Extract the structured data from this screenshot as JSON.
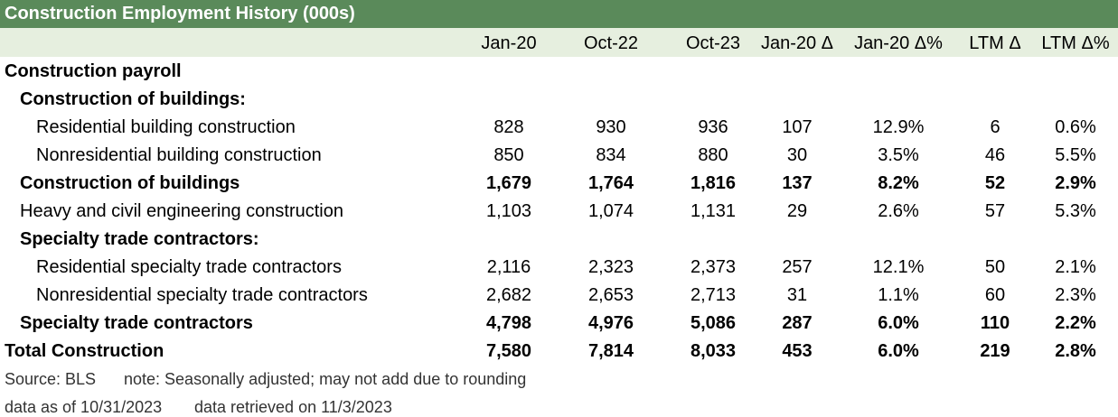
{
  "title": "Construction Employment History (000s)",
  "columns": [
    "Jan-20",
    "Oct-22",
    "Oct-23",
    "Jan-20 Δ",
    "Jan-20 Δ%",
    "LTM Δ",
    "LTM Δ%"
  ],
  "rows": [
    {
      "label": "Construction payroll",
      "level": 0,
      "bold": true,
      "values": []
    },
    {
      "label": "Construction of buildings:",
      "level": 1,
      "bold": true,
      "values": []
    },
    {
      "label": "Residential building construction",
      "level": 2,
      "bold": false,
      "values": [
        "828",
        "930",
        "936",
        "107",
        "12.9%",
        "6",
        "0.6%"
      ]
    },
    {
      "label": "Nonresidential building construction",
      "level": 2,
      "bold": false,
      "values": [
        "850",
        "834",
        "880",
        "30",
        "3.5%",
        "46",
        "5.5%"
      ]
    },
    {
      "label": "Construction of buildings",
      "level": 1,
      "bold": true,
      "values": [
        "1,679",
        "1,764",
        "1,816",
        "137",
        "8.2%",
        "52",
        "2.9%"
      ]
    },
    {
      "label": "Heavy and civil engineering construction",
      "level": 1,
      "bold": false,
      "values": [
        "1,103",
        "1,074",
        "1,131",
        "29",
        "2.6%",
        "57",
        "5.3%"
      ]
    },
    {
      "label": "Specialty trade contractors:",
      "level": 1,
      "bold": true,
      "values": []
    },
    {
      "label": "Residential specialty trade contractors",
      "level": 2,
      "bold": false,
      "values": [
        "2,116",
        "2,323",
        "2,373",
        "257",
        "12.1%",
        "50",
        "2.1%"
      ]
    },
    {
      "label": "Nonresidential specialty trade contractors",
      "level": 2,
      "bold": false,
      "values": [
        "2,682",
        "2,653",
        "2,713",
        "31",
        "1.1%",
        "60",
        "2.3%"
      ]
    },
    {
      "label": "Specialty trade contractors",
      "level": 1,
      "bold": true,
      "values": [
        "4,798",
        "4,976",
        "5,086",
        "287",
        "6.0%",
        "110",
        "2.2%"
      ]
    },
    {
      "label": "Total Construction",
      "level": 0,
      "bold": true,
      "values": [
        "7,580",
        "7,814",
        "8,033",
        "453",
        "6.0%",
        "219",
        "2.8%"
      ]
    }
  ],
  "footer": {
    "source": "Source: BLS",
    "note": "note: Seasonally adjusted; may not add due to rounding",
    "data_as_of": "data as of 10/31/2023",
    "retrieved": "data retrieved on 11/3/2023"
  },
  "colors": {
    "title_bg": "#5a8a5a",
    "header_bg": "#e6efdf"
  },
  "chart_data": {
    "type": "table",
    "title": "Construction Employment History (000s)",
    "columns": [
      "Jan-20",
      "Oct-22",
      "Oct-23",
      "Jan-20 Δ",
      "Jan-20 Δ%",
      "LTM Δ",
      "LTM Δ%"
    ],
    "rows": [
      {
        "label": "Residential building construction",
        "values": [
          828,
          930,
          936,
          107,
          12.9,
          6,
          0.6
        ]
      },
      {
        "label": "Nonresidential building construction",
        "values": [
          850,
          834,
          880,
          30,
          3.5,
          46,
          5.5
        ]
      },
      {
        "label": "Construction of buildings",
        "values": [
          1679,
          1764,
          1816,
          137,
          8.2,
          52,
          2.9
        ]
      },
      {
        "label": "Heavy and civil engineering construction",
        "values": [
          1103,
          1074,
          1131,
          29,
          2.6,
          57,
          5.3
        ]
      },
      {
        "label": "Residential specialty trade contractors",
        "values": [
          2116,
          2323,
          2373,
          257,
          12.1,
          50,
          2.1
        ]
      },
      {
        "label": "Nonresidential specialty trade contractors",
        "values": [
          2682,
          2653,
          2713,
          31,
          1.1,
          60,
          2.3
        ]
      },
      {
        "label": "Specialty trade contractors",
        "values": [
          4798,
          4976,
          5086,
          287,
          6.0,
          110,
          2.2
        ]
      },
      {
        "label": "Total Construction",
        "values": [
          7580,
          7814,
          8033,
          453,
          6.0,
          219,
          2.8
        ]
      }
    ]
  }
}
